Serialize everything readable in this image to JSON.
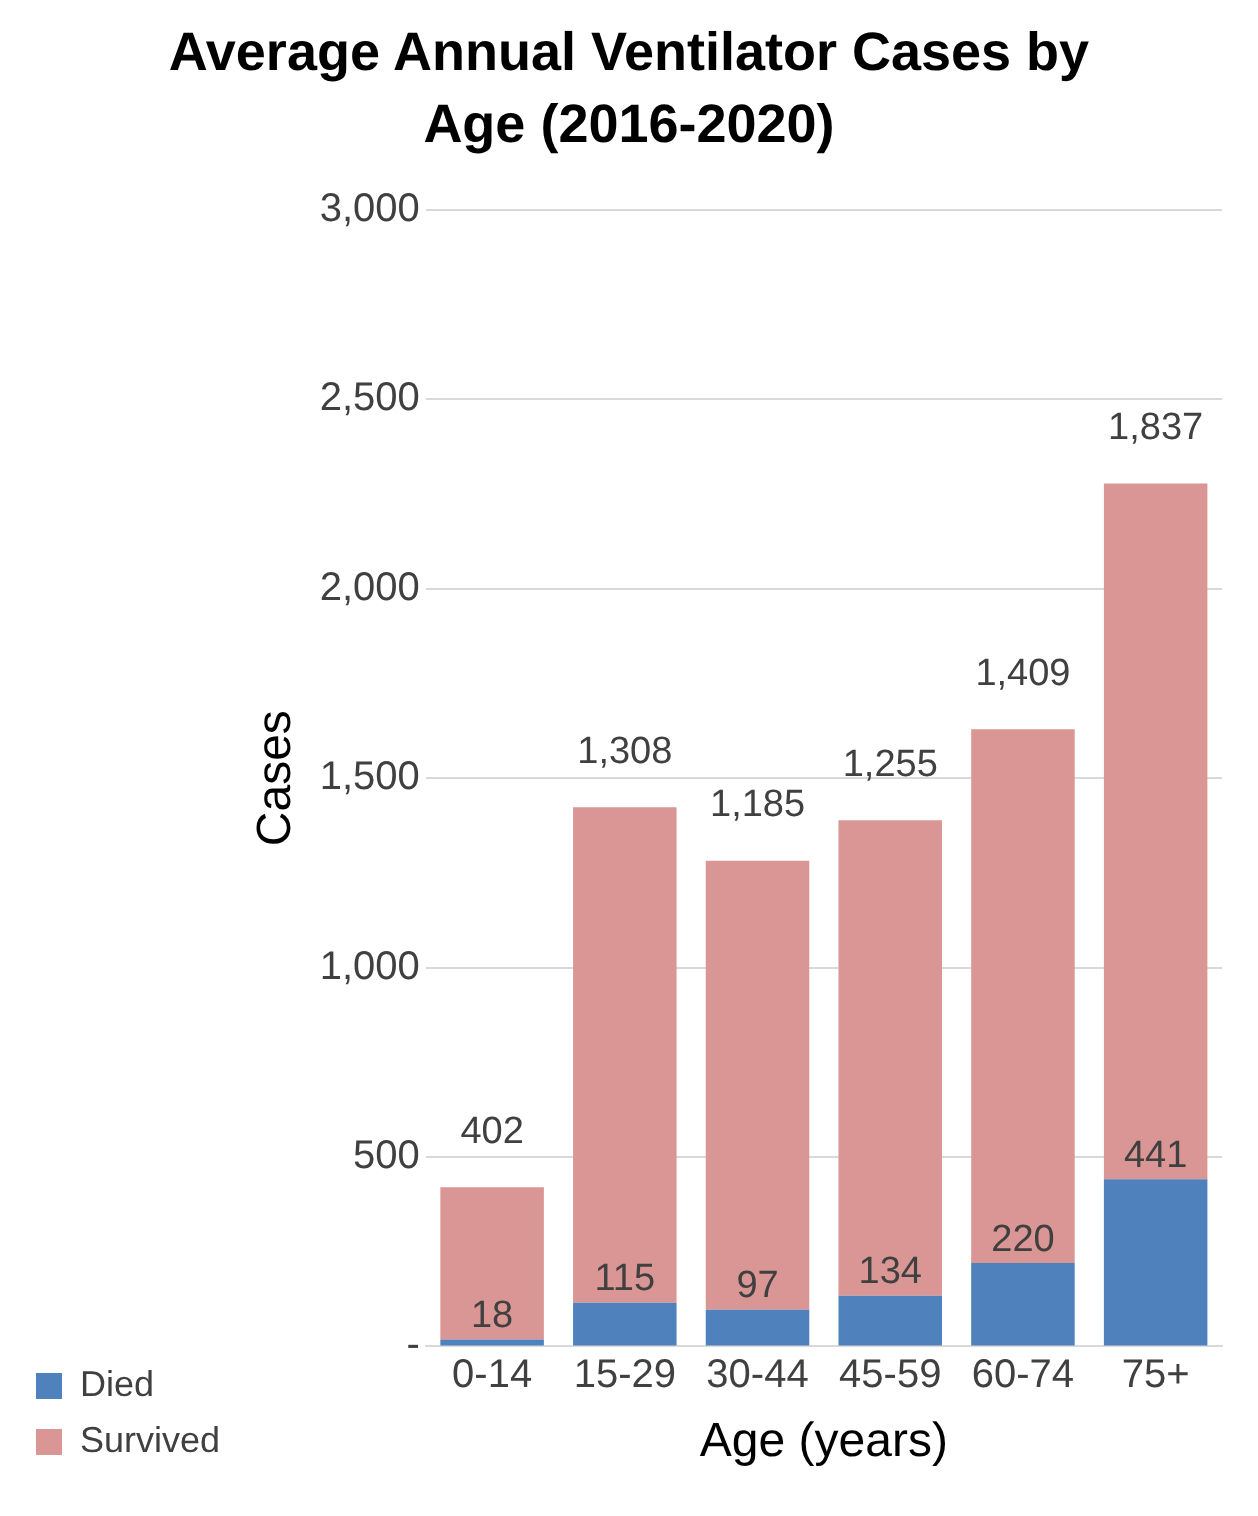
{
  "chart_data": {
    "type": "bar",
    "title": "Average Annual Ventilator Cases by Age (2016-2020)",
    "xlabel": "Age (years)",
    "ylabel": "Cases",
    "categories": [
      "0-14",
      "15-29",
      "30-44",
      "45-59",
      "60-74",
      "75+"
    ],
    "series": [
      {
        "name": "Died",
        "color": "#4f81bd",
        "values": [
          18,
          115,
          97,
          134,
          220,
          441
        ],
        "value_labels": [
          "18",
          "115",
          "97",
          "134",
          "220",
          "441"
        ]
      },
      {
        "name": "Survived",
        "color": "#d99694",
        "values": [
          402,
          1308,
          1185,
          1255,
          1409,
          1837
        ],
        "value_labels": [
          "402",
          "1,308",
          "1,185",
          "1,255",
          "1,409",
          "1,837"
        ]
      }
    ],
    "stacked": true,
    "ylim": [
      0,
      3000
    ],
    "yticks": [
      {
        "value": 0,
        "label": "-"
      },
      500,
      {
        "value": 1000,
        "label": "1,000"
      },
      {
        "value": 1500,
        "label": "1,500"
      },
      {
        "value": 2000,
        "label": "2,000"
      },
      {
        "value": 2500,
        "label": "2,500"
      },
      {
        "value": 3000,
        "label": "3,000"
      }
    ],
    "grid": "y",
    "legend": "bottom left"
  }
}
